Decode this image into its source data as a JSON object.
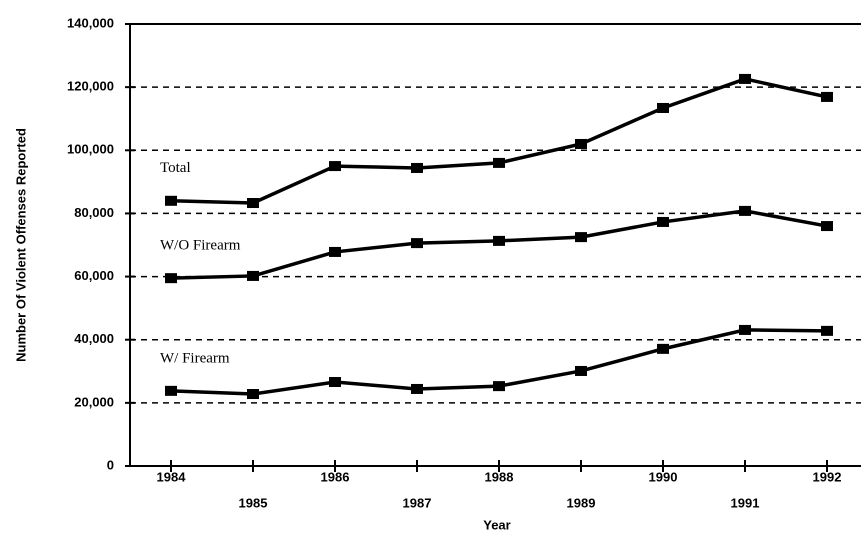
{
  "chart_data": {
    "type": "line",
    "x_label": "Year",
    "y_label": "Number Of Violent Offenses Reported",
    "categories": [
      "1984",
      "1985",
      "1986",
      "1987",
      "1988",
      "1989",
      "1990",
      "1991",
      "1992"
    ],
    "series": [
      {
        "name": "Total",
        "color": "#000000",
        "values": [
          84000,
          83300,
          95000,
          94400,
          96000,
          102000,
          113400,
          122600,
          116900
        ]
      },
      {
        "name": "W/O Firearm",
        "color": "#000000",
        "values": [
          59500,
          60200,
          67800,
          70600,
          71300,
          72500,
          77300,
          80800,
          76000
        ]
      },
      {
        "name": "W/ Firearm",
        "color": "#000000",
        "values": [
          23800,
          22800,
          26600,
          24400,
          25300,
          30100,
          37100,
          43100,
          42800
        ]
      }
    ],
    "ylim": [
      0,
      140000
    ],
    "yticks": [
      0,
      {
        "value": 20000,
        "label": "20,000"
      },
      {
        "value": 40000,
        "label": "40,000"
      },
      {
        "value": 60000,
        "label": "60,000"
      },
      {
        "value": 80000,
        "label": "80,000"
      },
      {
        "value": 100000,
        "label": "100,000"
      },
      {
        "value": 120000,
        "label": "120,000"
      },
      {
        "value": 140000,
        "label": "140,000"
      }
    ],
    "grid": true
  }
}
